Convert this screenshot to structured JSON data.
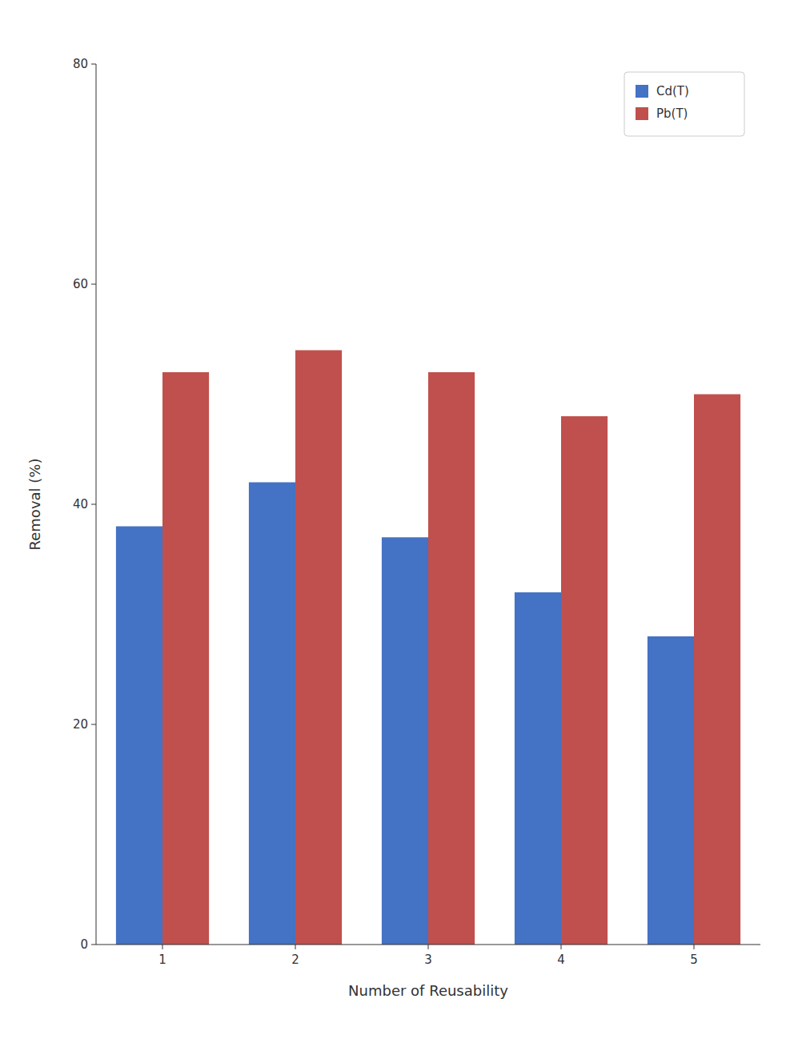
{
  "chart_data": {
    "type": "bar",
    "categories": [
      "1",
      "2",
      "3",
      "4",
      "5"
    ],
    "series": [
      {
        "name": "Cd(T)",
        "color": "#4472c4",
        "values": [
          38,
          42,
          37,
          32,
          28
        ]
      },
      {
        "name": "Pb(T)",
        "color": "#c0504d",
        "values": [
          52,
          54,
          52,
          48,
          50
        ]
      }
    ],
    "x_label": "Number of Reusability",
    "y_label": "Removal (%)",
    "ylim": [
      0,
      80
    ],
    "yticks": [
      0,
      20,
      40,
      60,
      80
    ],
    "legend": "upper right",
    "grid": false
  }
}
